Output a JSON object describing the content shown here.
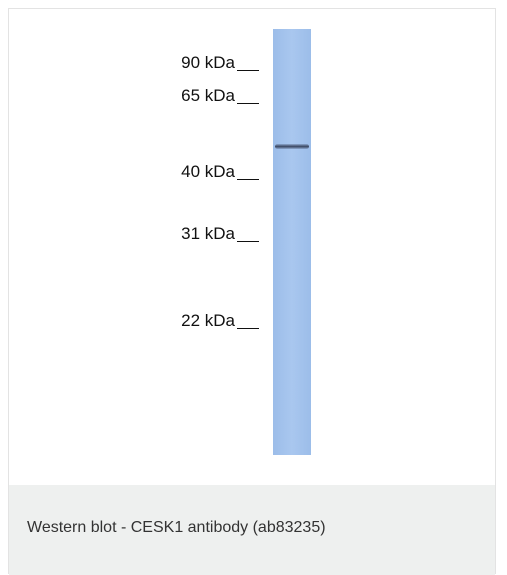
{
  "blot": {
    "markers": [
      "90 kDa",
      "65 kDa",
      "40 kDa",
      "31 kDa",
      "22 kDa"
    ]
  },
  "caption": "Western blot - CESK1 antibody (ab83235)"
}
